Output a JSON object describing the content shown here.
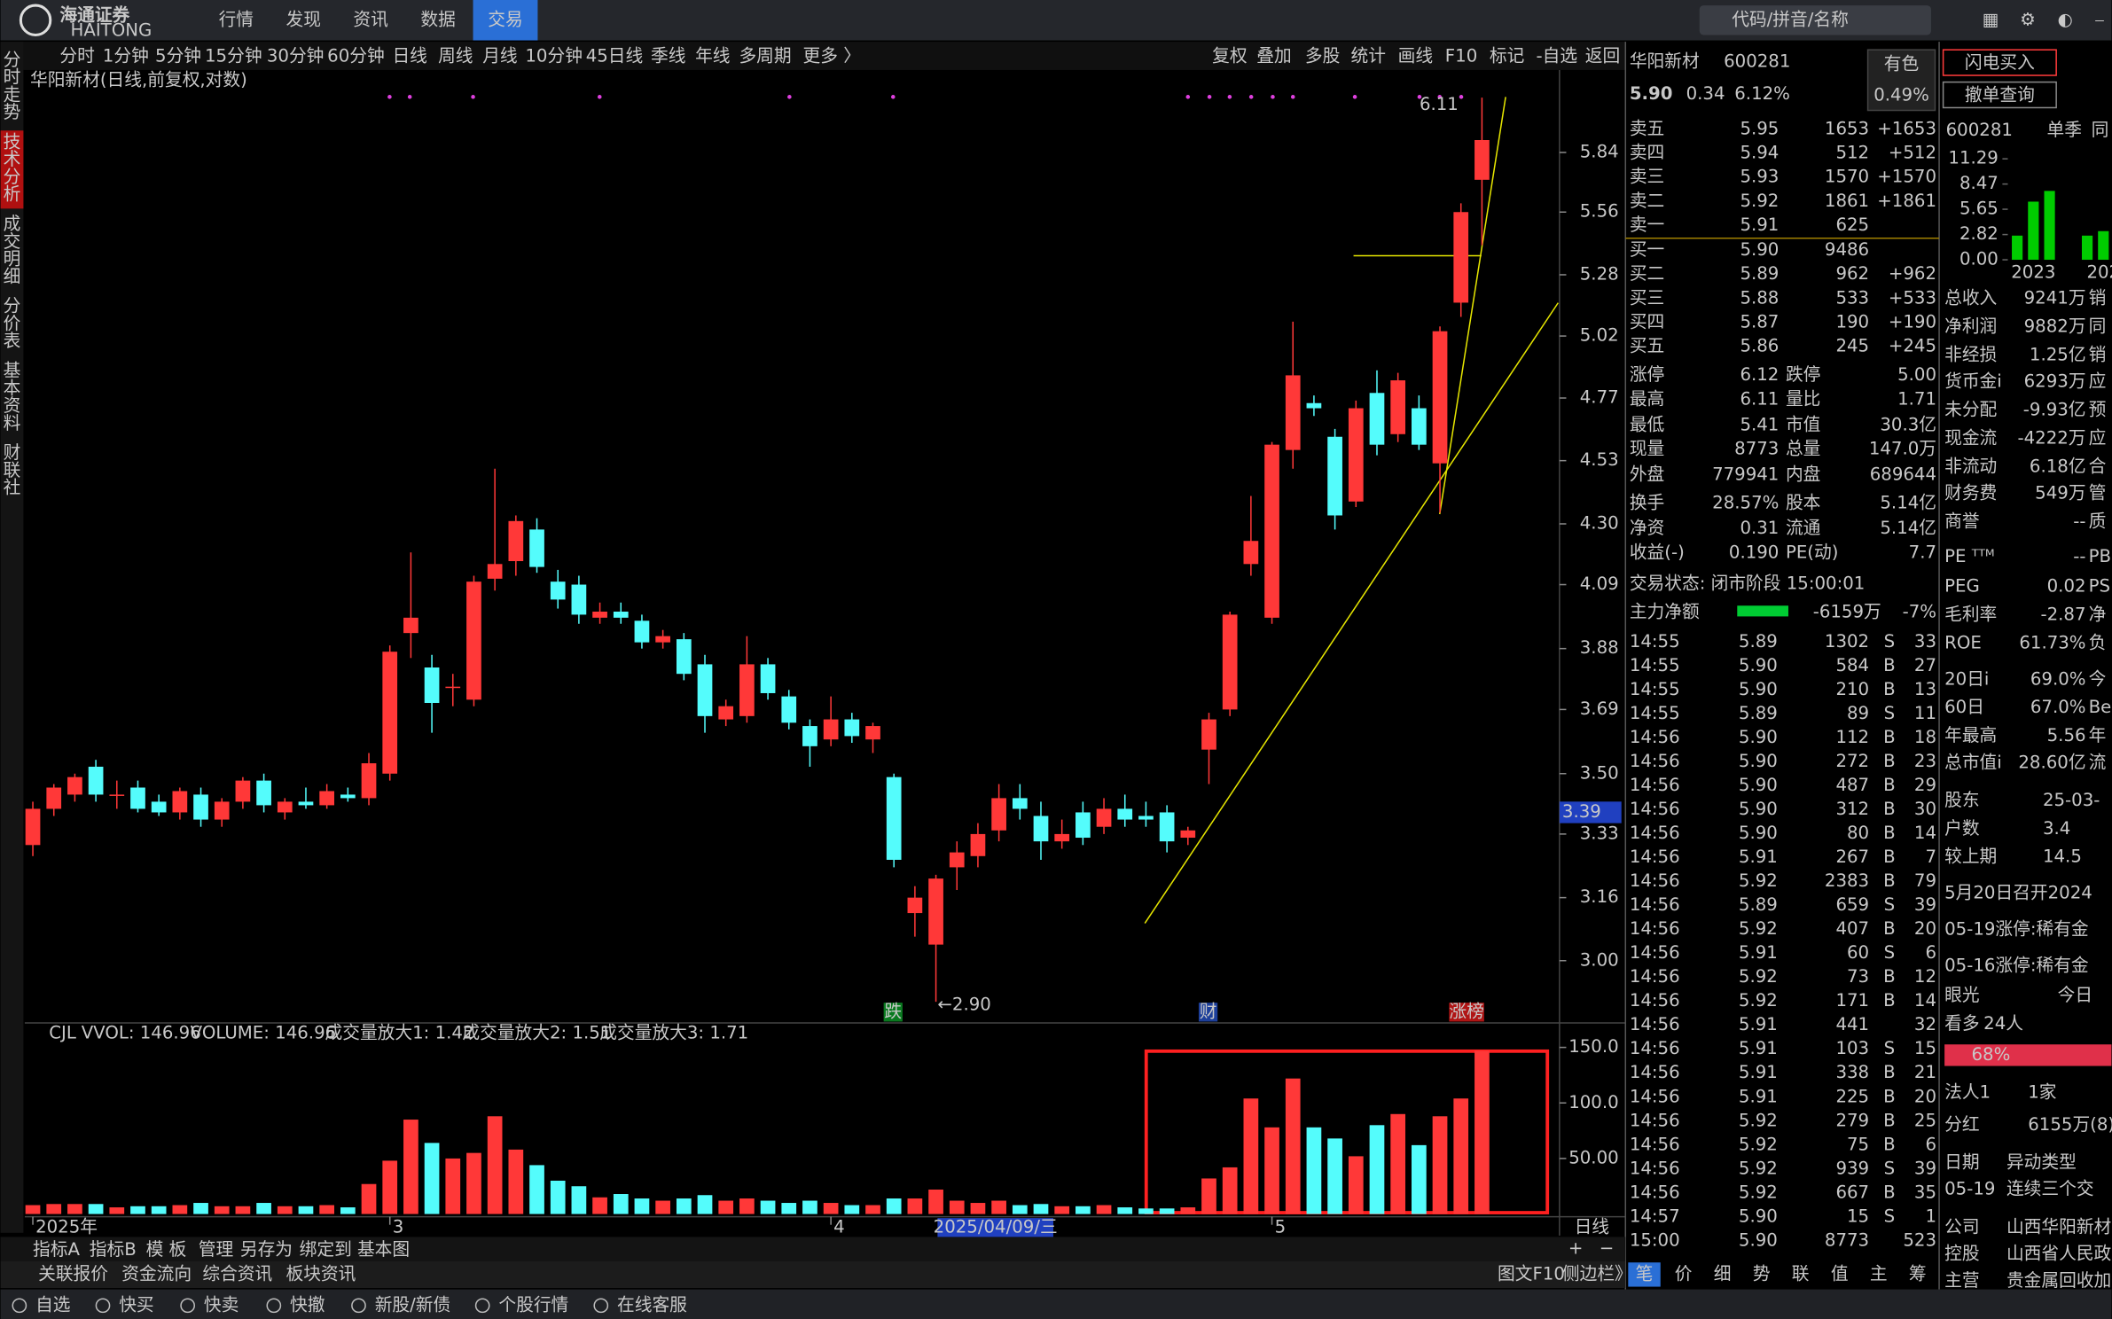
{
  "topbar": {
    "logo": "海通证券",
    "logo_en": "HAITONG",
    "menu": [
      "行情",
      "发现",
      "资讯",
      "数据",
      "交易"
    ],
    "active": 4,
    "search": "代码/拼音/名称"
  },
  "toolbar": {
    "periods": [
      "分时",
      "1分钟",
      "5分钟",
      "15分钟",
      "30分钟",
      "60分钟",
      "日线",
      "周线",
      "月线",
      "10分钟",
      "45日线",
      "季线",
      "年线",
      "多周期",
      "更多 〉"
    ],
    "active": 6,
    "tools": [
      "复权",
      "叠加",
      "多股",
      "统计",
      "画线",
      "F10",
      "标记",
      "-自选",
      "返回"
    ]
  },
  "side_tabs": [
    "分时走势",
    "技术分析",
    "成交明细",
    "分价表",
    "基本资料",
    "财联社"
  ],
  "side_active": 1,
  "chart_data": {
    "type": "candlestick",
    "title": "华阳新材(日线,前复权,对数)",
    "log_scale": true,
    "ylim": [
      2.85,
      6.23
    ],
    "yticks": [
      5.84,
      5.56,
      5.28,
      5.02,
      4.77,
      4.53,
      {
        "value": 4.3,
        "label": "4.30"
      },
      4.09,
      3.88,
      3.69,
      {
        "value": 3.5,
        "label": "3.50"
      },
      3.33,
      3.16,
      {
        "value": 3,
        "label": "3.00"
      }
    ],
    "up_color": "#ff3838",
    "down_color": "#54fcfc",
    "categories": [
      "2025年",
      null,
      null,
      null,
      null,
      null,
      null,
      null,
      null,
      null,
      null,
      null,
      null,
      null,
      null,
      null,
      null,
      "3",
      null,
      null,
      null,
      null,
      null,
      null,
      null,
      null,
      null,
      null,
      null,
      null,
      null,
      null,
      null,
      null,
      null,
      null,
      null,
      null,
      "4",
      null,
      null,
      null,
      null,
      null,
      null,
      null,
      null,
      null,
      null,
      null,
      null,
      null,
      null,
      null,
      null,
      null,
      null,
      null,
      null,
      "5",
      null,
      null,
      null,
      null,
      null,
      null,
      null,
      null,
      null,
      null
    ],
    "open": [
      3.3,
      3.4,
      3.44,
      3.52,
      3.44,
      3.46,
      3.42,
      3.39,
      3.44,
      3.37,
      3.42,
      3.48,
      3.39,
      3.42,
      3.41,
      3.44,
      3.43,
      3.5,
      3.93,
      3.82,
      3.76,
      3.72,
      4.11,
      4.17,
      4.28,
      4.1,
      4.09,
      3.98,
      4.0,
      3.97,
      3.9,
      3.91,
      3.83,
      3.66,
      3.67,
      3.83,
      3.73,
      3.64,
      3.6,
      3.66,
      3.6,
      3.49,
      3.12,
      3.04,
      3.24,
      3.27,
      3.34,
      3.43,
      3.38,
      3.31,
      3.39,
      3.35,
      3.4,
      3.38,
      3.39,
      3.32,
      3.57,
      3.69,
      4.16,
      3.98,
      4.57,
      4.75,
      4.62,
      4.38,
      4.79,
      4.63,
      4.73,
      4.52,
      5.16,
      5.71
    ],
    "high": [
      3.42,
      3.47,
      3.5,
      3.54,
      3.48,
      3.48,
      3.44,
      3.46,
      3.46,
      3.43,
      3.49,
      3.5,
      3.43,
      3.46,
      3.47,
      3.46,
      3.56,
      3.89,
      4.2,
      3.86,
      3.8,
      4.12,
      4.5,
      4.33,
      4.32,
      4.14,
      4.12,
      4.03,
      4.03,
      3.99,
      3.94,
      3.93,
      3.86,
      3.72,
      3.92,
      3.85,
      3.75,
      3.66,
      3.73,
      3.68,
      3.65,
      3.5,
      3.19,
      3.22,
      3.31,
      3.36,
      3.47,
      3.47,
      3.42,
      3.37,
      3.42,
      3.43,
      3.44,
      3.42,
      3.41,
      3.35,
      3.68,
      4.0,
      4.4,
      4.6,
      5.08,
      4.78,
      4.65,
      4.76,
      4.88,
      4.87,
      4.78,
      5.06,
      5.6,
      6.11
    ],
    "low": [
      3.27,
      3.38,
      3.42,
      3.42,
      3.4,
      3.39,
      3.38,
      3.37,
      3.35,
      3.35,
      3.4,
      3.39,
      3.37,
      3.4,
      3.4,
      3.42,
      3.41,
      3.48,
      3.85,
      3.62,
      3.7,
      3.7,
      4.07,
      4.12,
      4.13,
      4.01,
      3.96,
      3.96,
      3.96,
      3.88,
      3.88,
      3.78,
      3.62,
      3.64,
      3.65,
      3.72,
      3.63,
      3.52,
      3.58,
      3.59,
      3.56,
      3.24,
      3.06,
      2.9,
      3.18,
      3.24,
      3.31,
      3.37,
      3.26,
      3.29,
      3.3,
      3.33,
      3.35,
      3.35,
      3.28,
      3.3,
      3.47,
      3.67,
      4.12,
      3.96,
      4.5,
      4.7,
      4.28,
      4.36,
      4.55,
      4.6,
      4.57,
      4.34,
      5.1,
      5.41
    ],
    "close": [
      3.4,
      3.46,
      3.49,
      3.44,
      3.44,
      3.4,
      3.39,
      3.45,
      3.37,
      3.42,
      3.48,
      3.41,
      3.42,
      3.41,
      3.45,
      3.43,
      3.53,
      3.87,
      3.98,
      3.71,
      3.76,
      4.1,
      4.16,
      4.31,
      4.15,
      4.04,
      3.99,
      4.0,
      3.98,
      3.9,
      3.92,
      3.8,
      3.67,
      3.7,
      3.83,
      3.74,
      3.65,
      3.58,
      3.66,
      3.61,
      3.64,
      3.26,
      3.16,
      3.21,
      3.28,
      3.33,
      3.43,
      3.4,
      3.31,
      3.33,
      3.32,
      3.4,
      3.37,
      3.37,
      3.31,
      3.34,
      3.66,
      3.99,
      4.24,
      4.59,
      4.86,
      4.73,
      4.33,
      4.73,
      4.59,
      4.84,
      4.59,
      5.04,
      5.56,
      5.9
    ],
    "high_label": "6.11",
    "low_label": "←2.90",
    "markers": [
      "跌",
      "财",
      "涨榜"
    ],
    "cursor": {
      "price": 3.39,
      "date": "2025/04/09/三"
    },
    "volume": {
      "label": "CJL",
      "legend": [
        "VVOL: 146.96",
        "VOLUME: 146.96",
        "成交量放大1: 1.42",
        "成交量放大2: 1.51",
        "成交量放大3: 1.71"
      ],
      "ylim": [
        0,
        166
      ],
      "yticks": [
        {
          "value": 150,
          "label": "150.0"
        },
        {
          "value": 100,
          "label": "100.0"
        },
        {
          "value": 50,
          "label": "50.00"
        }
      ],
      "values": [
        8,
        9,
        9,
        9,
        6,
        7,
        7,
        8,
        10,
        7,
        7,
        10,
        7,
        7,
        8,
        6,
        27,
        48,
        85,
        64,
        50,
        55,
        88,
        58,
        44,
        30,
        25,
        15,
        18,
        14,
        12,
        14,
        17,
        12,
        14,
        12,
        10,
        12,
        10,
        8,
        8,
        14,
        14,
        22,
        12,
        10,
        12,
        8,
        9,
        7,
        7,
        8,
        6,
        5,
        5,
        6,
        32,
        42,
        104,
        78,
        122,
        78,
        68,
        52,
        80,
        90,
        62,
        88,
        104,
        146.96
      ]
    },
    "period_label": "日线"
  },
  "bottom_tabs": [
    "指标A",
    "指标B",
    "模 板",
    "管理",
    "另存为",
    "绑定到",
    "基本图"
  ],
  "bottom_active": 3,
  "status_left": [
    "关联报价",
    "资金流向",
    "综合资讯",
    "板块资讯"
  ],
  "status_right": [
    "图文F10",
    "侧边栏》"
  ],
  "taskbar": [
    "自选",
    "快买",
    "快卖",
    "快撤",
    "新股/新债",
    "个股行情",
    "在线客服"
  ],
  "quote": {
    "name": "华阳新材",
    "code": "600281",
    "price": "5.90",
    "change": "0.34",
    "pct": "6.12%",
    "sector": "有色",
    "sector_pct": "0.49%",
    "buttons": [
      "闪电买入",
      "撤单查询"
    ],
    "asks": [
      [
        "卖五",
        "5.95",
        "1653",
        "+1653"
      ],
      [
        "卖四",
        "5.94",
        "512",
        "+512"
      ],
      [
        "卖三",
        "5.93",
        "1570",
        "+1570"
      ],
      [
        "卖二",
        "5.92",
        "1861",
        "+1861"
      ],
      [
        "卖一",
        "5.91",
        "625"
      ]
    ],
    "bids": [
      [
        "买一",
        "5.90",
        "9486"
      ],
      [
        "买二",
        "5.89",
        "962",
        "+962"
      ],
      [
        "买三",
        "5.88",
        "533",
        "+533"
      ],
      [
        "买四",
        "5.87",
        "190",
        "+190"
      ],
      [
        "买五",
        "5.86",
        "245",
        "+245"
      ]
    ],
    "stats": [
      [
        "涨停",
        "6.12",
        "跌停",
        "5.00"
      ],
      [
        "最高",
        "6.11",
        "量比",
        "1.71"
      ],
      [
        "最低",
        "5.41",
        "市值",
        "30.3亿"
      ],
      [
        "现量",
        "8773",
        "总量",
        "147.0万"
      ],
      [
        "外盘",
        "779941",
        "内盘",
        "689644"
      ],
      [
        "换手",
        "28.57%",
        "股本",
        "5.14亿"
      ],
      [
        "净资",
        "0.31",
        "流通",
        "5.14亿"
      ],
      [
        "收益(-)",
        "0.190",
        "PE(动)",
        "7.7"
      ]
    ],
    "status": "交易状态: 闭市阶段 15:00:01",
    "flow_label": "主力净额",
    "flow": "-6159万",
    "flow_pct": "-7%",
    "trades": [
      [
        "14:55",
        "5.89",
        "1302",
        "S",
        "33"
      ],
      [
        "14:55",
        "5.90",
        "584",
        "B",
        "27"
      ],
      [
        "14:55",
        "5.90",
        "210",
        "B",
        "13"
      ],
      [
        "14:55",
        "5.89",
        "89",
        "S",
        "11"
      ],
      [
        "14:56",
        "5.90",
        "112",
        "B",
        "18"
      ],
      [
        "14:56",
        "5.90",
        "272",
        "B",
        "23"
      ],
      [
        "14:56",
        "5.90",
        "487",
        "B",
        "29"
      ],
      [
        "14:56",
        "5.90",
        "312",
        "B",
        "30"
      ],
      [
        "14:56",
        "5.90",
        "80",
        "B",
        "14"
      ],
      [
        "14:56",
        "5.91",
        "267",
        "B",
        "7"
      ],
      [
        "14:56",
        "5.92",
        "2383",
        "B",
        "79"
      ],
      [
        "14:56",
        "5.89",
        "659",
        "S",
        "39"
      ],
      [
        "14:56",
        "5.92",
        "407",
        "B",
        "20"
      ],
      [
        "14:56",
        "5.91",
        "60",
        "S",
        "6"
      ],
      [
        "14:56",
        "5.92",
        "73",
        "B",
        "12"
      ],
      [
        "14:56",
        "5.92",
        "171",
        "B",
        "14"
      ],
      [
        "14:56",
        "5.91",
        "441",
        "32"
      ],
      [
        "14:56",
        "5.91",
        "103",
        "S",
        "15"
      ],
      [
        "14:56",
        "5.91",
        "338",
        "B",
        "21"
      ],
      [
        "14:56",
        "5.91",
        "225",
        "B",
        "20"
      ],
      [
        "14:56",
        "5.92",
        "279",
        "B",
        "25"
      ],
      [
        "14:56",
        "5.92",
        "75",
        "B",
        "6"
      ],
      [
        "14:56",
        "5.92",
        "939",
        "S",
        "39"
      ],
      [
        "14:56",
        "5.92",
        "667",
        "B",
        "35"
      ],
      [
        "14:57",
        "5.90",
        "15",
        "S",
        "1"
      ],
      [
        "15:00",
        "5.90",
        "8773",
        "523"
      ]
    ],
    "tabs": [
      "笔",
      "价",
      "细",
      "势",
      "联",
      "值",
      "主",
      "筹"
    ]
  },
  "finance": {
    "code": "600281",
    "period": "单季",
    "more": "同",
    "fin_chart": {
      "ylim": [
        0,
        11.29
      ],
      "yticks": [
        11.29,
        8.47,
        5.65,
        2.82,
        {
          "value": 0,
          "label": "0.00"
        }
      ],
      "categories": [
        null,
        "2023",
        null,
        null,
        "202"
      ],
      "values": [
        2.7,
        6.5,
        7.7,
        2.7,
        3.2
      ],
      "color": "#00cc00"
    },
    "rows": [
      [
        "总收入",
        "9241万",
        "销"
      ],
      [
        "净利润",
        "9882万",
        "同"
      ],
      [
        "非经损",
        "1.25亿",
        "销"
      ],
      [
        "货币金i",
        "6293万",
        "应"
      ],
      [
        "未分配",
        "-9.93亿",
        "预"
      ],
      [
        "现金流",
        "-4222万",
        "应"
      ],
      [
        "非流动",
        "6.18亿",
        "合"
      ],
      [
        "财务费",
        "549万",
        "管"
      ],
      [
        "商誉",
        "--",
        "质"
      ],
      [
        "PE ᵀᵀᴹ",
        "--",
        "PB"
      ],
      [
        "PEG",
        "0.02",
        "PS"
      ],
      [
        "毛利率",
        "-2.87",
        "净"
      ],
      [
        "ROE",
        "61.73%",
        "负"
      ],
      [
        "20日i",
        "69.0%",
        "今"
      ],
      [
        "60日",
        "67.0%",
        "Be"
      ],
      [
        "年最高",
        "5.56",
        "年"
      ],
      [
        "总市值i",
        "28.60亿",
        "流"
      ]
    ],
    "holders": [
      [
        "股东",
        "25-03-"
      ],
      [
        "户数",
        "3.4"
      ],
      [
        "较上期",
        "14.5"
      ]
    ],
    "news": [
      "5月20日召开2024",
      "05-19涨停:稀有金",
      "05-16涨停:稀有金"
    ],
    "vision": [
      "眼光",
      "今日"
    ],
    "bull": [
      "看多",
      "24人"
    ],
    "bull_pct": "68%",
    "info": [
      [
        "法人1",
        "1家"
      ],
      [
        "分红",
        "6155万(8)"
      ],
      [
        "日期",
        "异动类型"
      ],
      [
        "05-19",
        "连续三个交"
      ],
      [
        "公司",
        "山西华阳新材"
      ],
      [
        "控股",
        "山西省人民政"
      ],
      [
        "主营",
        "贵金属回收加"
      ]
    ]
  }
}
